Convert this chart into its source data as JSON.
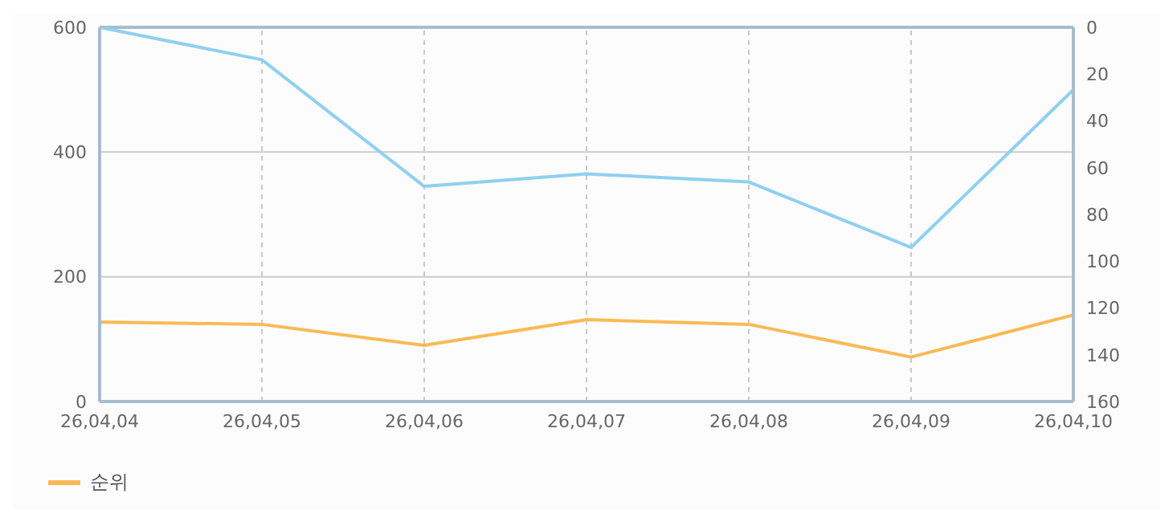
{
  "chart_data": {
    "type": "line",
    "categories": [
      "26,04,04",
      "26,04,05",
      "26,04,06",
      "26,04,07",
      "26,04,08",
      "26,04,09",
      "26,04,10"
    ],
    "series": [
      {
        "color": "#8fd0f0",
        "values": [
          600,
          548,
          345,
          365,
          352,
          247,
          500
        ]
      },
      {
        "name": "순위",
        "color": "#fbb955",
        "axis": "y2",
        "values": [
          126,
          127,
          136,
          125,
          127,
          141,
          123
        ]
      }
    ],
    "ylim": [
      0,
      600
    ],
    "yticks": [
      0,
      200,
      400,
      600
    ],
    "y2lim": [
      160,
      0
    ],
    "y2ticks": [
      0,
      20,
      40,
      60,
      80,
      100,
      120,
      140,
      160
    ],
    "grid": true,
    "legend": "bottom left",
    "marker": "none",
    "line_style": "solid"
  }
}
